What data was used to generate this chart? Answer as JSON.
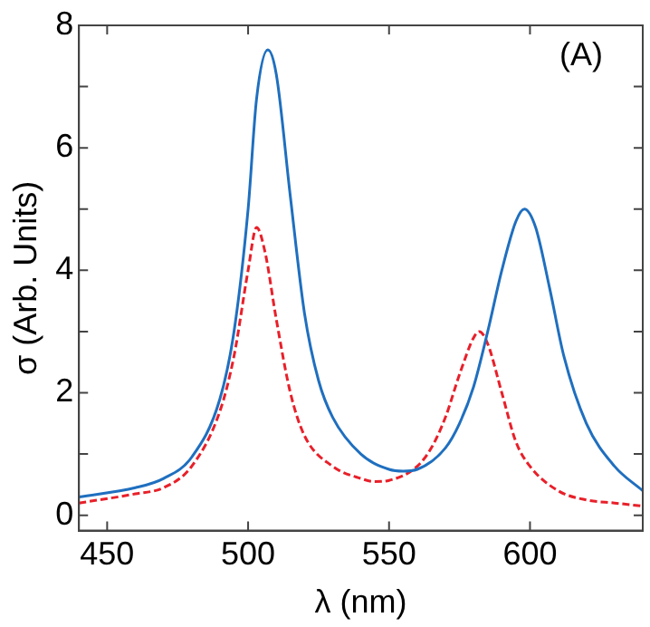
{
  "chart_data": {
    "type": "line",
    "xlabel": "λ (nm)",
    "ylabel": "σ (Arb. Units)",
    "annotations": [
      "(A)"
    ],
    "xlim": [
      440,
      640
    ],
    "xticks": [
      450,
      500,
      550,
      600
    ],
    "ylim": [
      -0.25,
      8
    ],
    "yticks": [
      0,
      {
        "value": 1,
        "label": null
      },
      2,
      {
        "value": 3,
        "label": null
      },
      4,
      {
        "value": 5,
        "label": null
      },
      6,
      {
        "value": 7,
        "label": null
      },
      8
    ],
    "grid": false,
    "legend": false,
    "marker": "none",
    "series": [
      {
        "color": "#1f6fbf",
        "line_style": "solid",
        "x": [
          440,
          460,
          470,
          480,
          490,
          495,
          500,
          503,
          507,
          510,
          515,
          520,
          525,
          530,
          540,
          550,
          555,
          560,
          570,
          575,
          580,
          585,
          590,
          595,
          598,
          602,
          607,
          612,
          620,
          630,
          640
        ],
        "values": [
          0.3,
          0.45,
          0.6,
          0.95,
          1.9,
          3.0,
          5.0,
          6.8,
          7.6,
          7.2,
          5.2,
          3.3,
          2.2,
          1.6,
          1.0,
          0.75,
          0.72,
          0.75,
          1.1,
          1.5,
          2.1,
          3.0,
          4.0,
          4.8,
          5.0,
          4.7,
          3.7,
          2.6,
          1.5,
          0.8,
          0.4
        ]
      },
      {
        "color": "#e8202a",
        "line_style": "dashed",
        "x": [
          440,
          460,
          470,
          480,
          490,
          495,
          500,
          503,
          506,
          510,
          515,
          520,
          530,
          540,
          545,
          550,
          560,
          565,
          570,
          575,
          580,
          582,
          585,
          590,
          595,
          600,
          610,
          620,
          630,
          640
        ],
        "values": [
          0.2,
          0.35,
          0.45,
          0.8,
          1.7,
          2.6,
          4.0,
          4.7,
          4.3,
          3.2,
          2.0,
          1.3,
          0.8,
          0.6,
          0.55,
          0.57,
          0.8,
          1.1,
          1.6,
          2.3,
          2.9,
          3.0,
          2.8,
          2.0,
          1.2,
          0.8,
          0.4,
          0.25,
          0.2,
          0.15
        ]
      }
    ]
  }
}
